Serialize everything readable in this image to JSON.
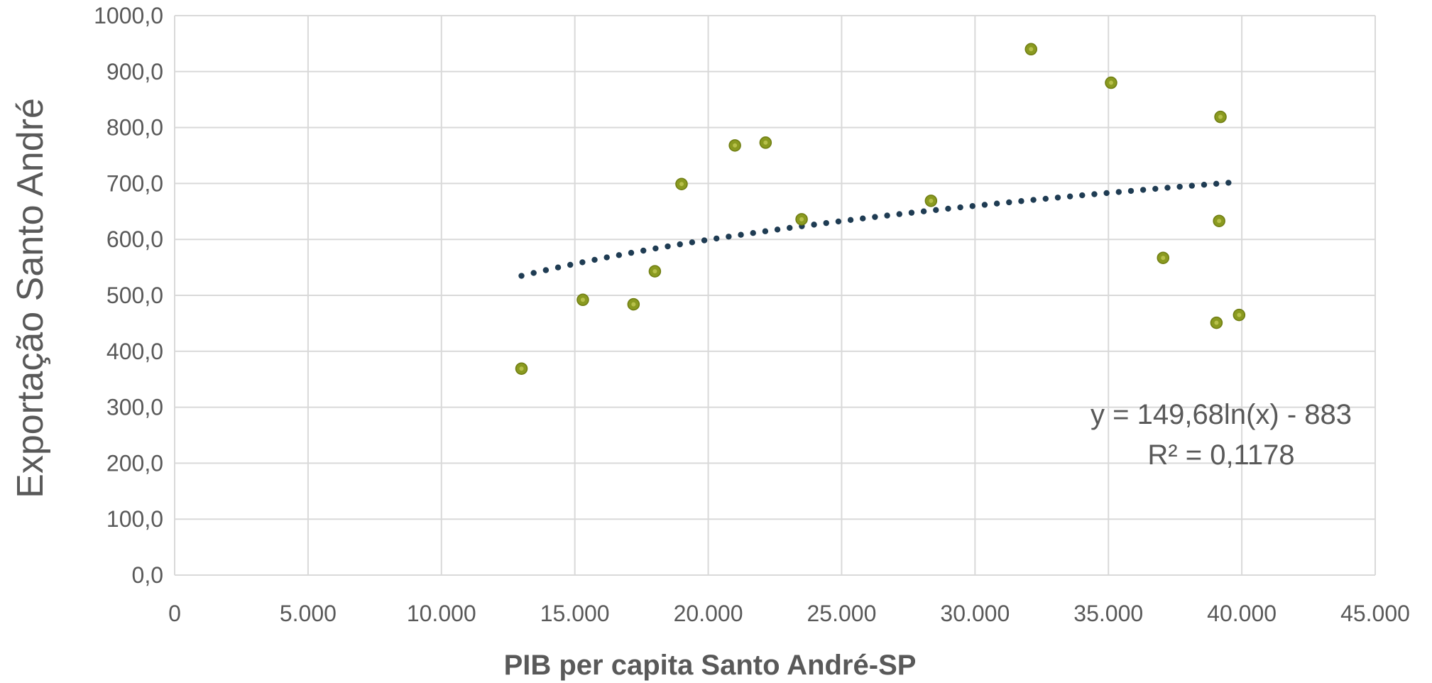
{
  "chart_data": {
    "type": "scatter",
    "xlabel": "PIB per capita Santo André-SP",
    "ylabel": "Exportação Santo André",
    "xlim": [
      0,
      45000
    ],
    "ylim": [
      0,
      1000
    ],
    "x_tick_values": [
      0,
      5000,
      10000,
      15000,
      20000,
      25000,
      30000,
      35000,
      40000,
      45000
    ],
    "x_tick_labels": [
      "0",
      "5.000",
      "10.000",
      "15.000",
      "20.000",
      "25.000",
      "30.000",
      "35.000",
      "40.000",
      "45.000"
    ],
    "y_tick_values": [
      0,
      100,
      200,
      300,
      400,
      500,
      600,
      700,
      800,
      900,
      1000
    ],
    "y_tick_labels": [
      "0,0",
      "100,0",
      "200,0",
      "300,0",
      "400,0",
      "500,0",
      "600,0",
      "700,0",
      "800,0",
      "900,0",
      "1000,0"
    ],
    "grid": true,
    "points": [
      {
        "x": 13000,
        "y": 369
      },
      {
        "x": 15300,
        "y": 492
      },
      {
        "x": 17200,
        "y": 484
      },
      {
        "x": 18000,
        "y": 543
      },
      {
        "x": 19000,
        "y": 699
      },
      {
        "x": 21000,
        "y": 768
      },
      {
        "x": 22150,
        "y": 773
      },
      {
        "x": 23500,
        "y": 636
      },
      {
        "x": 28350,
        "y": 669
      },
      {
        "x": 32100,
        "y": 940
      },
      {
        "x": 35100,
        "y": 880
      },
      {
        "x": 37050,
        "y": 567
      },
      {
        "x": 39050,
        "y": 451
      },
      {
        "x": 39150,
        "y": 633
      },
      {
        "x": 39200,
        "y": 819
      },
      {
        "x": 39900,
        "y": 465
      }
    ],
    "trendline": {
      "type": "logarithmic",
      "a": 149.68,
      "b": -883,
      "x_range": [
        13000,
        39500
      ],
      "equation_label": "y = 149,68ln(x) - 883",
      "r2_label": "R² = 0,1178"
    },
    "colors": {
      "point_fill": "#8a9a20",
      "point_stroke": "#6f7d12",
      "point_center": "#b7c04a",
      "trendline": "#1f3c53",
      "grid": "#d9d9d9",
      "text": "#595959"
    }
  }
}
